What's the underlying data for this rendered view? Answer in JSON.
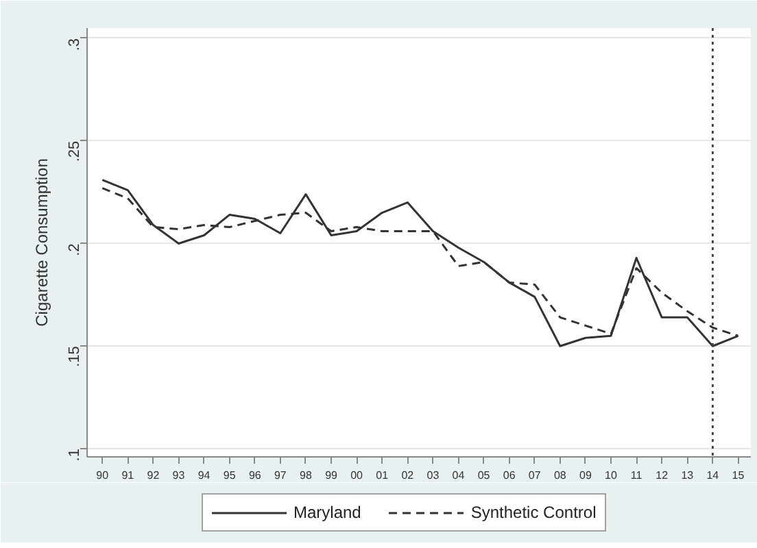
{
  "chart_data": {
    "type": "line",
    "ylabel": "Cigarette Consumption",
    "x": [
      1990,
      1991,
      1992,
      1993,
      1994,
      1995,
      1996,
      1997,
      1998,
      1999,
      2000,
      2001,
      2002,
      2003,
      2004,
      2005,
      2006,
      2007,
      2008,
      2009,
      2010,
      2011,
      2012,
      2013,
      2014,
      2015
    ],
    "series": [
      {
        "name": "Maryland",
        "color": "#333333",
        "line_style": "solid",
        "values": [
          0.231,
          0.226,
          0.209,
          0.2,
          0.204,
          0.214,
          0.212,
          0.205,
          0.224,
          0.204,
          0.206,
          0.215,
          0.22,
          0.206,
          0.198,
          0.191,
          0.181,
          0.174,
          0.15,
          0.154,
          0.155,
          0.193,
          0.164,
          0.164,
          0.15,
          0.155
        ]
      },
      {
        "name": "Synthetic Control",
        "color": "#333333",
        "line_style": "dashed",
        "values": [
          0.227,
          0.222,
          0.208,
          0.207,
          0.209,
          0.208,
          0.211,
          0.214,
          0.215,
          0.206,
          0.208,
          0.206,
          0.206,
          0.206,
          0.189,
          0.191,
          0.181,
          0.18,
          0.164,
          0.16,
          0.156,
          0.188,
          0.176,
          0.167,
          0.159,
          0.155
        ]
      }
    ],
    "xlim": [
      1989.4,
      2015.5
    ],
    "ylim": [
      0.096,
      0.305
    ],
    "xticks": [
      {
        "value": 1990,
        "label": "90"
      },
      {
        "value": 1991,
        "label": "91"
      },
      {
        "value": 1992,
        "label": "92"
      },
      {
        "value": 1993,
        "label": "93"
      },
      {
        "value": 1994,
        "label": "94"
      },
      {
        "value": 1995,
        "label": "95"
      },
      {
        "value": 1996,
        "label": "96"
      },
      {
        "value": 1997,
        "label": "97"
      },
      {
        "value": 1998,
        "label": "98"
      },
      {
        "value": 1999,
        "label": "99"
      },
      {
        "value": 2000,
        "label": "00"
      },
      {
        "value": 2001,
        "label": "01"
      },
      {
        "value": 2002,
        "label": "02"
      },
      {
        "value": 2003,
        "label": "03"
      },
      {
        "value": 2004,
        "label": "04"
      },
      {
        "value": 2005,
        "label": "05"
      },
      {
        "value": 2006,
        "label": "06"
      },
      {
        "value": 2007,
        "label": "07"
      },
      {
        "value": 2008,
        "label": "08"
      },
      {
        "value": 2009,
        "label": "09"
      },
      {
        "value": 2010,
        "label": "10"
      },
      {
        "value": 2011,
        "label": "11"
      },
      {
        "value": 2012,
        "label": "12"
      },
      {
        "value": 2013,
        "label": "13"
      },
      {
        "value": 2014,
        "label": "14"
      },
      {
        "value": 2015,
        "label": "15"
      }
    ],
    "yticks": [
      {
        "value": 0.1,
        "label": ".1"
      },
      {
        "value": 0.15,
        "label": ".15"
      },
      {
        "value": 0.2,
        "label": ".2"
      },
      {
        "value": 0.25,
        "label": ".25"
      },
      {
        "value": 0.3,
        "label": ".3"
      }
    ],
    "grid": "y",
    "legend": "bottom",
    "ref_lines": [
      {
        "axis": "x",
        "value": 2014,
        "color": "#444444",
        "line_style": "dotted"
      }
    ]
  }
}
